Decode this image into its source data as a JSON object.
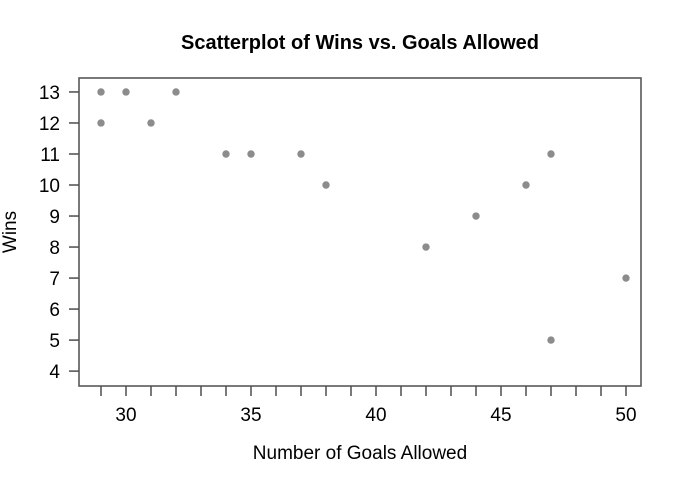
{
  "figure": {
    "background": "#ffffff"
  },
  "chart_data": {
    "type": "scatter",
    "title": "Scatterplot of Wins vs. Goals Allowed",
    "xlabel": "Number of Goals Allowed",
    "ylabel": "Wins",
    "points": [
      [
        29,
        13
      ],
      [
        30,
        13
      ],
      [
        32,
        13
      ],
      [
        29,
        12
      ],
      [
        31,
        12
      ],
      [
        34,
        11
      ],
      [
        35,
        11
      ],
      [
        37,
        11
      ],
      [
        47,
        11
      ],
      [
        38,
        10
      ],
      [
        46,
        10
      ],
      [
        44,
        9
      ],
      [
        42,
        8
      ],
      [
        50,
        7
      ],
      [
        47,
        5
      ]
    ],
    "xlim": [
      28.12,
      50.6
    ],
    "ylim": [
      3.52,
      13.45
    ],
    "x_ticks_minor": [
      29,
      30,
      31,
      32,
      33,
      34,
      35,
      36,
      37,
      38,
      39,
      40,
      41,
      42,
      43,
      44,
      45,
      46,
      47,
      48,
      49,
      50
    ],
    "x_ticks_labeled": [
      30,
      35,
      40,
      45,
      50
    ],
    "y_ticks_labeled": [
      4,
      5,
      6,
      7,
      8,
      9,
      10,
      11,
      12,
      13
    ],
    "grid": false,
    "legend": "none",
    "point_color": "#8c8c8c",
    "axis_color": "#4d4d4d",
    "text_color": "#000000"
  }
}
